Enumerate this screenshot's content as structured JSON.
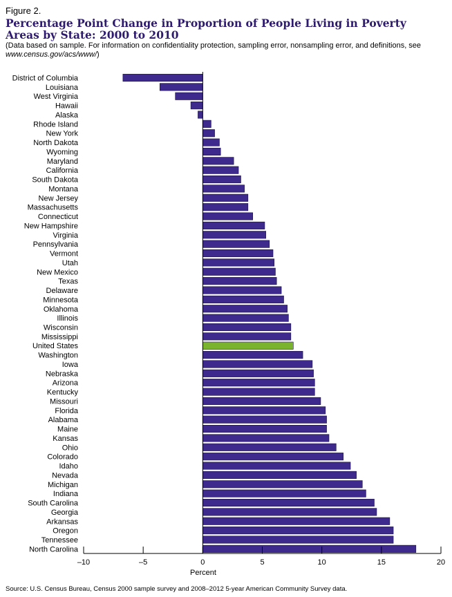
{
  "figure": {
    "label": "Figure 2.",
    "title": "Percentage Point Change in Proportion of People Living in Poverty Areas by State: 2000 to 2010",
    "note_prefix": "(Data based on sample. For information on confidentiality protection, sampling error, nonsampling error, and definitions, see ",
    "note_link": "www.census.gov/acs/www/",
    "note_suffix": ")",
    "source": "Source: U.S. Census Bureau, Census 2000 sample survey and 2008–2012 5-year American Community Survey data."
  },
  "colors": {
    "bar": "#3d2a8c",
    "highlight": "#7ab32e",
    "title": "#2e1a6e"
  },
  "chart_data": {
    "type": "bar",
    "orientation": "horizontal",
    "xlabel": "Percent",
    "xlim": [
      -10,
      20
    ],
    "xticks": [
      -10,
      -5,
      0,
      5,
      10,
      15,
      20
    ],
    "highlight_category": "United States",
    "categories": [
      "District of Columbia",
      "Louisiana",
      "West Virginia",
      "Hawaii",
      "Alaska",
      "Rhode Island",
      "New York",
      "North Dakota",
      "Wyoming",
      "Maryland",
      "California",
      "South Dakota",
      "Montana",
      "New Jersey",
      "Massachusetts",
      "Connecticut",
      "New Hampshire",
      "Virginia",
      "Pennsylvania",
      "Vermont",
      "Utah",
      "New Mexico",
      "Texas",
      "Delaware",
      "Minnesota",
      "Oklahoma",
      "Illinois",
      "Wisconsin",
      "Mississippi",
      "United States",
      "Washington",
      "Iowa",
      "Nebraska",
      "Arizona",
      "Kentucky",
      "Missouri",
      "Florida",
      "Alabama",
      "Maine",
      "Kansas",
      "Ohio",
      "Colorado",
      "Idaho",
      "Nevada",
      "Michigan",
      "Indiana",
      "South Carolina",
      "Georgia",
      "Arkansas",
      "Oregon",
      "Tennessee",
      "North Carolina"
    ],
    "values": [
      -6.7,
      -3.6,
      -2.3,
      -1.0,
      -0.4,
      0.7,
      1.0,
      1.4,
      1.5,
      2.6,
      3.0,
      3.2,
      3.5,
      3.8,
      3.8,
      4.2,
      5.2,
      5.3,
      5.6,
      5.9,
      6.0,
      6.1,
      6.2,
      6.6,
      6.8,
      7.1,
      7.2,
      7.4,
      7.4,
      7.6,
      8.4,
      9.2,
      9.3,
      9.4,
      9.4,
      9.9,
      10.3,
      10.4,
      10.4,
      10.6,
      11.2,
      11.8,
      12.4,
      12.9,
      13.4,
      13.7,
      14.4,
      14.6,
      15.7,
      16.0,
      16.0,
      17.9
    ]
  }
}
